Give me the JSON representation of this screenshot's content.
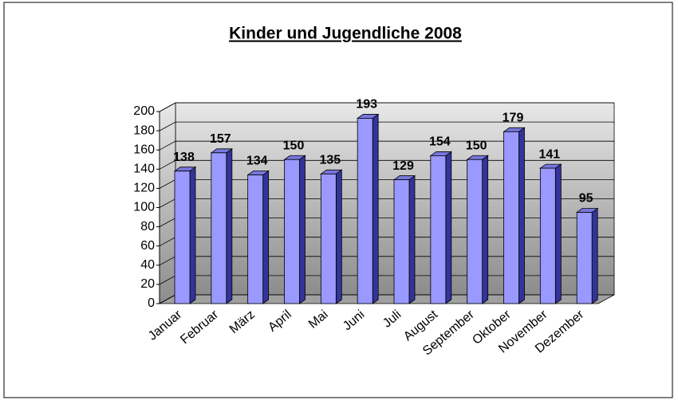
{
  "chart_data": {
    "type": "bar",
    "title": "Kinder und Jugendliche 2008",
    "categories": [
      "Januar",
      "Februar",
      "März",
      "April",
      "Mai",
      "Juni",
      "Juli",
      "August",
      "September",
      "Oktober",
      "November",
      "Dezember"
    ],
    "values": [
      138,
      157,
      134,
      150,
      135,
      193,
      129,
      154,
      150,
      179,
      141,
      95
    ],
    "color": "#9999ff",
    "ylim": [
      0,
      200
    ],
    "yticks": [
      0,
      20,
      40,
      60,
      80,
      100,
      120,
      140,
      160,
      180,
      200
    ],
    "grid": true
  }
}
